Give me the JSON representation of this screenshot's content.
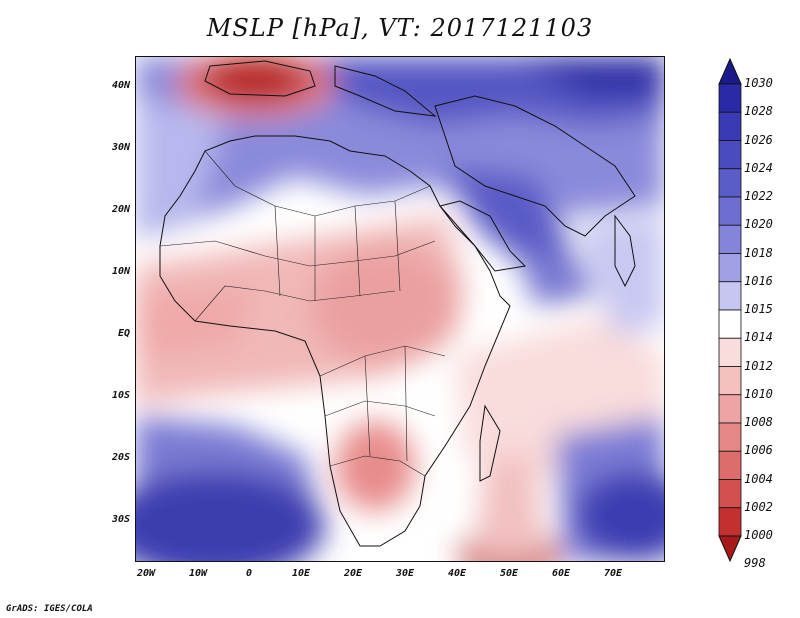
{
  "title": "MSLP [hPa], VT: 2017121103",
  "credit": "GrADS: IGES/COLA",
  "lat_labels": [
    "40N",
    "30N",
    "20N",
    "10N",
    "EQ",
    "10S",
    "20S",
    "30S"
  ],
  "lon_labels": [
    "20W",
    "10W",
    "0",
    "10E",
    "20E",
    "30E",
    "40E",
    "50E",
    "60E",
    "70E"
  ],
  "colorbar": {
    "levels": [
      "1030",
      "1028",
      "1026",
      "1024",
      "1022",
      "1020",
      "1018",
      "1016",
      "1015",
      "1014",
      "1012",
      "1010",
      "1008",
      "1006",
      "1004",
      "1002",
      "1000",
      "998"
    ],
    "colors": [
      "#1a1a8c",
      "#2a2aa6",
      "#3a3ab4",
      "#4b4bbf",
      "#5c5cc8",
      "#6e6ed0",
      "#8484da",
      "#a0a0e4",
      "#c6c6f0",
      "#ffffff",
      "#f9dcdc",
      "#f4c0c0",
      "#eea4a4",
      "#e68888",
      "#de6c6c",
      "#d45050",
      "#c43030",
      "#a81a1a"
    ]
  },
  "icons": {
    "colorbar_top": "triangle-up-icon",
    "colorbar_bottom": "triangle-down-icon"
  }
}
